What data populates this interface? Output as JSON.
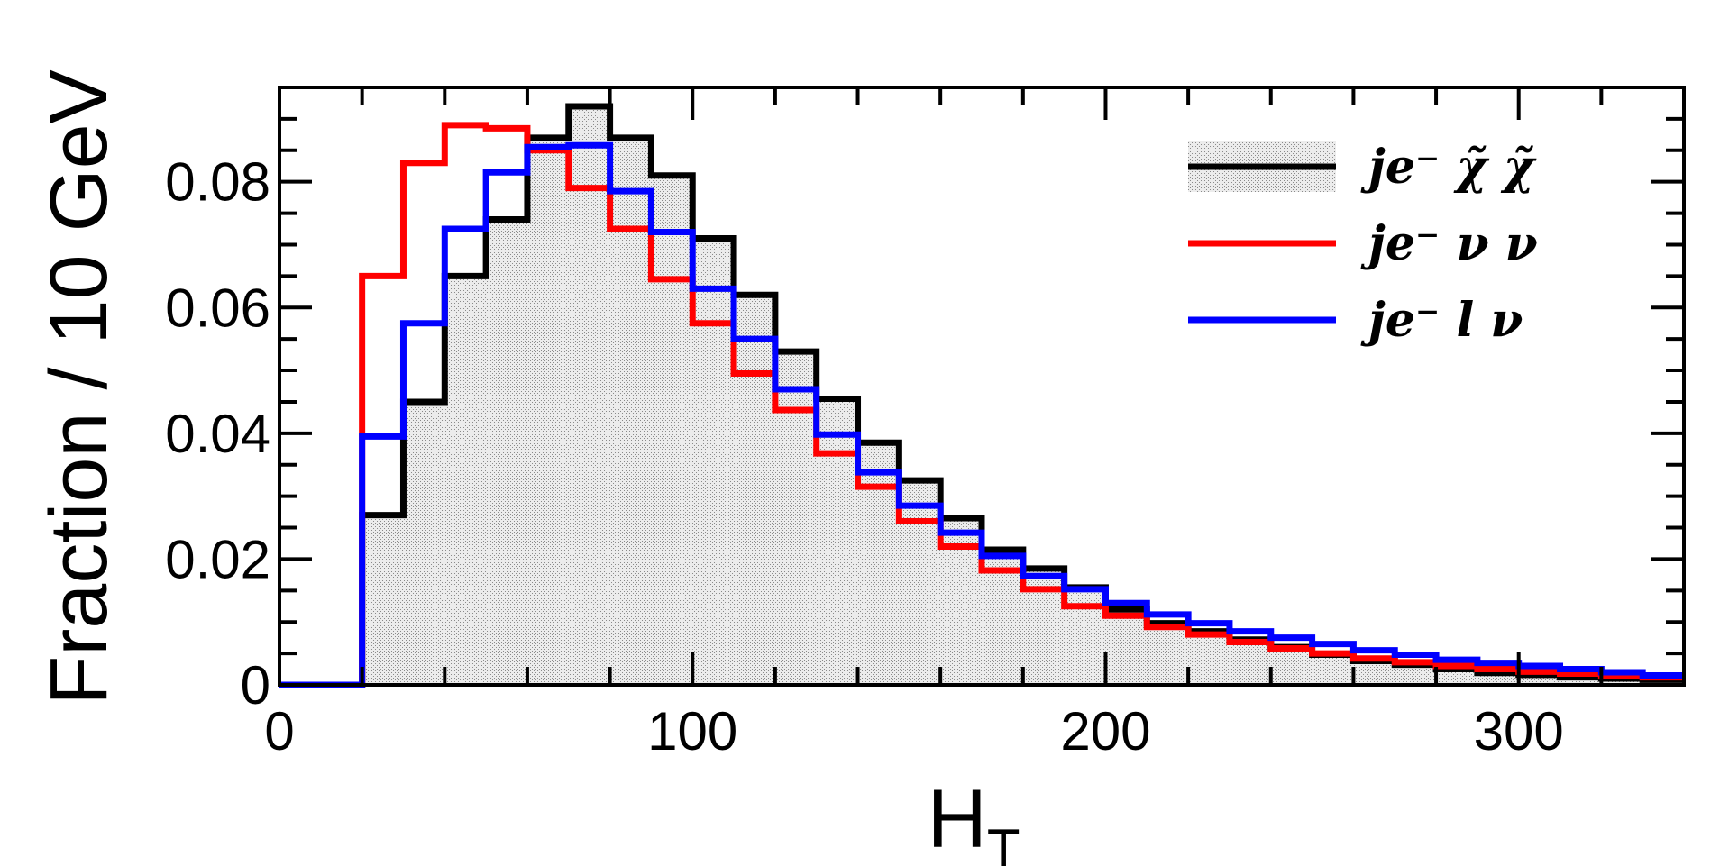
{
  "chart_data": {
    "type": "histogram",
    "xlabel": "H",
    "xlabel_subscript": "T",
    "ylabel": "Fraction / 10 GeV",
    "xlim": [
      0,
      340
    ],
    "ylim": [
      0,
      0.095
    ],
    "bin_width": 10,
    "x_ticks": [
      0,
      100,
      200,
      300
    ],
    "x_tick_labels": [
      "0",
      "100",
      "200",
      "300"
    ],
    "y_ticks": [
      0,
      0.02,
      0.04,
      0.06,
      0.08
    ],
    "y_tick_labels": [
      "0",
      "0.02",
      "0.04",
      "0.06",
      "0.08"
    ],
    "grid": false,
    "legend_position": "top-right",
    "bin_edges": [
      0,
      10,
      20,
      30,
      40,
      50,
      60,
      70,
      80,
      90,
      100,
      110,
      120,
      130,
      140,
      150,
      160,
      170,
      180,
      190,
      200,
      210,
      220,
      230,
      240,
      250,
      260,
      270,
      280,
      290,
      300,
      310,
      320,
      330,
      340
    ],
    "series": [
      {
        "legend": "je⁻ χ̃ χ̃",
        "color": "#000000",
        "fill": "#d9d9d9",
        "values": [
          0,
          0,
          0.027,
          0.045,
          0.065,
          0.074,
          0.087,
          0.092,
          0.087,
          0.081,
          0.071,
          0.062,
          0.053,
          0.0455,
          0.0385,
          0.0325,
          0.0265,
          0.0215,
          0.0185,
          0.0155,
          0.012,
          0.0098,
          0.0085,
          0.0072,
          0.006,
          0.0048,
          0.0038,
          0.0032,
          0.0025,
          0.0019,
          0.0016,
          0.0012,
          0.001,
          0.0008
        ]
      },
      {
        "legend": "je⁻ ν ν",
        "color": "#ff0000",
        "fill": null,
        "values": [
          0,
          0,
          0.065,
          0.083,
          0.089,
          0.0885,
          0.085,
          0.079,
          0.0725,
          0.0645,
          0.0575,
          0.0495,
          0.0437,
          0.0368,
          0.0315,
          0.026,
          0.022,
          0.0182,
          0.0152,
          0.0125,
          0.011,
          0.0092,
          0.008,
          0.0068,
          0.0058,
          0.005,
          0.0042,
          0.0036,
          0.003,
          0.0025,
          0.0021,
          0.0018,
          0.0015,
          0.0012
        ]
      },
      {
        "legend": "je⁻ l ν",
        "color": "#0000ff",
        "fill": null,
        "values": [
          0,
          0,
          0.0395,
          0.0575,
          0.0725,
          0.0815,
          0.0855,
          0.0858,
          0.0785,
          0.072,
          0.063,
          0.055,
          0.047,
          0.0398,
          0.0338,
          0.0285,
          0.0242,
          0.0205,
          0.0173,
          0.0152,
          0.013,
          0.0112,
          0.0098,
          0.0085,
          0.0075,
          0.0065,
          0.0055,
          0.0048,
          0.004,
          0.0035,
          0.003,
          0.0025,
          0.002,
          0.0015
        ]
      }
    ]
  }
}
